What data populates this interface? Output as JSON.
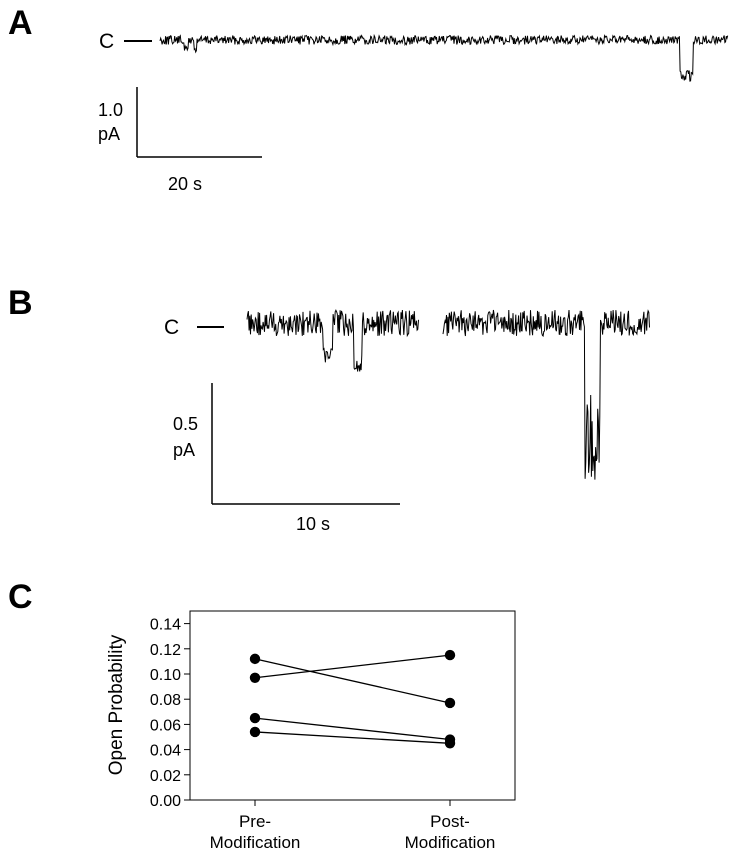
{
  "panels": {
    "a": {
      "letter": "A",
      "closed_label": "C",
      "scale_current": "1.0",
      "scale_unit": "pA",
      "scale_time": "20 s"
    },
    "b": {
      "letter": "B",
      "closed_label": "C",
      "scale_current": "0.5",
      "scale_unit": "pA",
      "scale_time": "10 s"
    },
    "c": {
      "letter": "C"
    }
  },
  "chart_data": {
    "type": "line",
    "ylabel": "Open Probability",
    "categories": [
      [
        "Pre-",
        "Modification"
      ],
      [
        "Post-",
        "Modification"
      ]
    ],
    "y_ticks": [
      "0.00",
      "0.02",
      "0.04",
      "0.06",
      "0.08",
      "0.10",
      "0.12",
      "0.14"
    ],
    "ylim": [
      0,
      0.15
    ],
    "grid": false,
    "series": [
      {
        "values": [
          0.112,
          0.077
        ]
      },
      {
        "values": [
          0.097,
          0.115
        ]
      },
      {
        "values": [
          0.065,
          0.048
        ]
      },
      {
        "values": [
          0.054,
          0.045
        ]
      }
    ],
    "colors": {
      "line": "#000000",
      "marker": "#000000"
    }
  }
}
